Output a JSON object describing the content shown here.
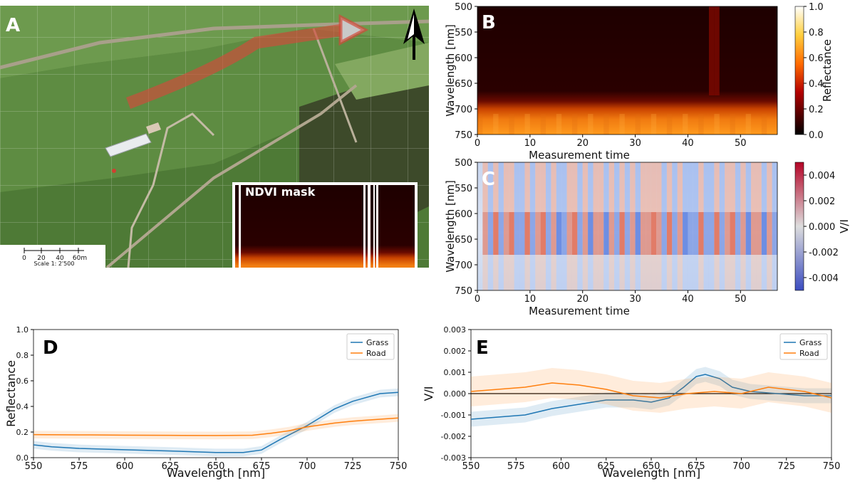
{
  "panels": {
    "a": "A",
    "b": "B",
    "c": "C",
    "d": "D",
    "e": "E"
  },
  "map": {
    "inset_label": "NDVI mask",
    "scale_ticks": [
      "0",
      "20",
      "40",
      "60m"
    ],
    "scale_text": "Scale 1: 2'500",
    "north_arrow": "north-arrow-icon",
    "colors": {
      "grass": "#4f7a38",
      "field": "#6a9a4a",
      "road": "#b9b09a",
      "flight_path": "#c0392b"
    }
  },
  "chart_data": [
    {
      "id": "B",
      "type": "heatmap",
      "xlabel": "Measurement time",
      "ylabel": "Wavelength [nm]",
      "xlim": [
        0,
        57
      ],
      "ylim": [
        750,
        500
      ],
      "x_ticks": [
        "0",
        "10",
        "20",
        "30",
        "40",
        "50"
      ],
      "y_ticks": [
        "500",
        "550",
        "600",
        "650",
        "700",
        "750"
      ],
      "colorbar": {
        "label": "Reflectance",
        "ticks": [
          "0.0",
          "0.2",
          "0.4",
          "0.6",
          "0.8",
          "1.0"
        ],
        "range": [
          0,
          1
        ],
        "cmap": "afmhot"
      },
      "bright_columns": [
        44,
        45
      ],
      "red_edge_nm": 690,
      "nir_reflectance": 0.5
    },
    {
      "id": "C",
      "type": "heatmap",
      "xlabel": "Measurement time",
      "ylabel": "Wavelength [nm]",
      "xlim": [
        0,
        57
      ],
      "ylim": [
        750,
        500
      ],
      "x_ticks": [
        "0",
        "10",
        "20",
        "30",
        "40",
        "50"
      ],
      "y_ticks": [
        "500",
        "550",
        "600",
        "650",
        "700",
        "750"
      ],
      "colorbar": {
        "label": "V/I",
        "ticks": [
          "0.004",
          "0.002",
          "0.000",
          "-0.002",
          "-0.004"
        ],
        "range": [
          -0.005,
          0.005
        ],
        "cmap": "coolwarm"
      },
      "column_sign": [
        0,
        1,
        -1,
        1,
        -1,
        1,
        1,
        -1,
        -1,
        1,
        -1,
        1,
        1,
        -1,
        1,
        -1,
        -1,
        1,
        1,
        -1,
        1,
        -1,
        1,
        1,
        -1,
        1,
        -1,
        1,
        -1,
        1,
        -1,
        1,
        1,
        1,
        1,
        -1,
        1,
        -1,
        1,
        -1,
        -1,
        -1,
        1,
        -1,
        -1,
        1,
        -1,
        1,
        1,
        -1,
        1,
        -1,
        1,
        1,
        -1,
        1,
        -1
      ]
    },
    {
      "id": "D",
      "type": "line",
      "xlabel": "Wavelength [nm]",
      "ylabel": "Reflectance",
      "xlim": [
        550,
        750
      ],
      "ylim": [
        0,
        1.0
      ],
      "x_ticks": [
        "550",
        "575",
        "600",
        "625",
        "650",
        "675",
        "700",
        "725",
        "750"
      ],
      "y_ticks": [
        "0.0",
        "0.2",
        "0.4",
        "0.6",
        "0.8",
        "1.0"
      ],
      "legend": "top-right",
      "series": [
        {
          "name": "Grass",
          "color": "#1f77b4",
          "x": [
            550,
            560,
            575,
            600,
            625,
            650,
            665,
            675,
            685,
            700,
            715,
            725,
            740,
            750
          ],
          "y": [
            0.1,
            0.085,
            0.072,
            0.062,
            0.052,
            0.04,
            0.04,
            0.06,
            0.14,
            0.25,
            0.38,
            0.44,
            0.5,
            0.51
          ],
          "band": 0.03
        },
        {
          "name": "Road",
          "color": "#ff7f0e",
          "x": [
            550,
            575,
            600,
            625,
            650,
            670,
            680,
            690,
            700,
            715,
            725,
            740,
            750
          ],
          "y": [
            0.18,
            0.178,
            0.176,
            0.174,
            0.173,
            0.175,
            0.19,
            0.21,
            0.24,
            0.27,
            0.285,
            0.3,
            0.31
          ],
          "band": 0.03
        }
      ]
    },
    {
      "id": "E",
      "type": "line",
      "xlabel": "Wavelength [nm]",
      "ylabel": "V/I",
      "xlim": [
        550,
        750
      ],
      "ylim": [
        -0.003,
        0.003
      ],
      "x_ticks": [
        "550",
        "575",
        "600",
        "625",
        "650",
        "675",
        "700",
        "725",
        "750"
      ],
      "y_ticks": [
        "0.003",
        "0.002",
        "0.001",
        "0.000",
        "-0.001",
        "-0.002",
        "-0.003"
      ],
      "legend": "top-right",
      "series": [
        {
          "name": "Grass",
          "color": "#1f77b4",
          "x": [
            550,
            565,
            580,
            595,
            610,
            625,
            640,
            650,
            660,
            668,
            675,
            680,
            688,
            695,
            705,
            720,
            735,
            750
          ],
          "y": [
            -0.0012,
            -0.0011,
            -0.001,
            -0.0007,
            -0.0005,
            -0.0003,
            -0.0003,
            -0.0004,
            -0.0002,
            0.0003,
            0.0008,
            0.0009,
            0.0007,
            0.0003,
            0.0001,
            0.0,
            -0.0001,
            -0.0001
          ],
          "band": 0.00035
        },
        {
          "name": "Road",
          "color": "#ff7f0e",
          "x": [
            550,
            565,
            580,
            595,
            610,
            625,
            640,
            655,
            670,
            685,
            700,
            715,
            725,
            735,
            750
          ],
          "y": [
            0.0001,
            0.0002,
            0.0003,
            0.0005,
            0.0004,
            0.0002,
            -0.0001,
            -0.0002,
            0.0,
            0.0001,
            0.0,
            0.0003,
            0.0002,
            0.0001,
            -0.0002
          ],
          "band": 0.0007
        }
      ]
    }
  ]
}
